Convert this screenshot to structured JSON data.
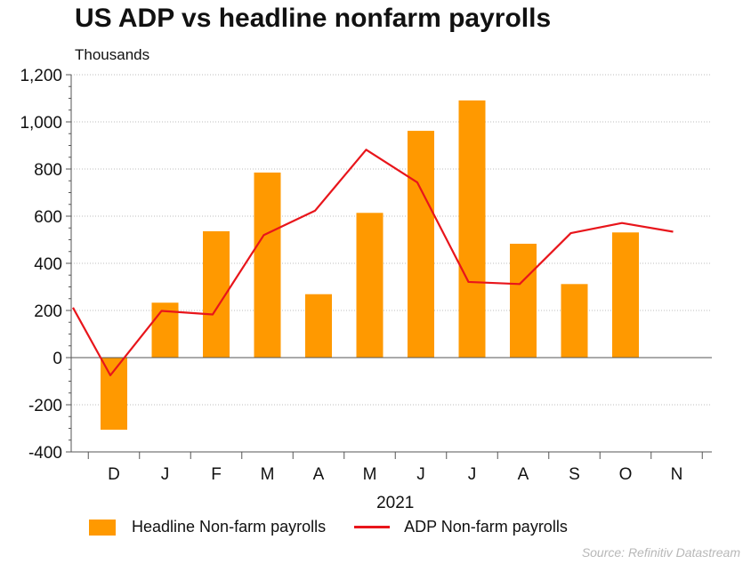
{
  "title": "US ADP vs headline nonfarm payrolls",
  "subtitle": "Thousands",
  "source": "Source: Refinitiv Datastream",
  "colors": {
    "bar": "#ff9900",
    "line": "#e8151b",
    "grid": "#bdbdbd",
    "axis": "#555555"
  },
  "chart_data": {
    "type": "bar",
    "title": "US ADP vs headline nonfarm payrolls",
    "ylabel": "Thousands",
    "xlabel": "2021",
    "ylim": [
      -400,
      1200
    ],
    "yticks": [
      -400,
      -200,
      0,
      200,
      400,
      600,
      800,
      1000,
      1200
    ],
    "ytick_labels": [
      "-400",
      "-200",
      "0",
      "200",
      "400",
      "600",
      "800",
      "1,000",
      "1,200"
    ],
    "categories": [
      "D",
      "J",
      "F",
      "M",
      "A",
      "M",
      "J",
      "J",
      "A",
      "S",
      "O",
      "N"
    ],
    "year_label": "2021",
    "grid": true,
    "legend_position": "bottom",
    "series": [
      {
        "name": "Headline Non-farm payrolls",
        "type": "bar",
        "values": [
          -306,
          233,
          536,
          785,
          269,
          614,
          962,
          1091,
          483,
          312,
          531,
          null
        ]
      },
      {
        "name": "ADP Non-farm payrolls",
        "type": "line",
        "start_value": 212,
        "values": [
          -75,
          198,
          183,
          520,
          623,
          882,
          743,
          321,
          312,
          528,
          571,
          534
        ]
      }
    ]
  }
}
